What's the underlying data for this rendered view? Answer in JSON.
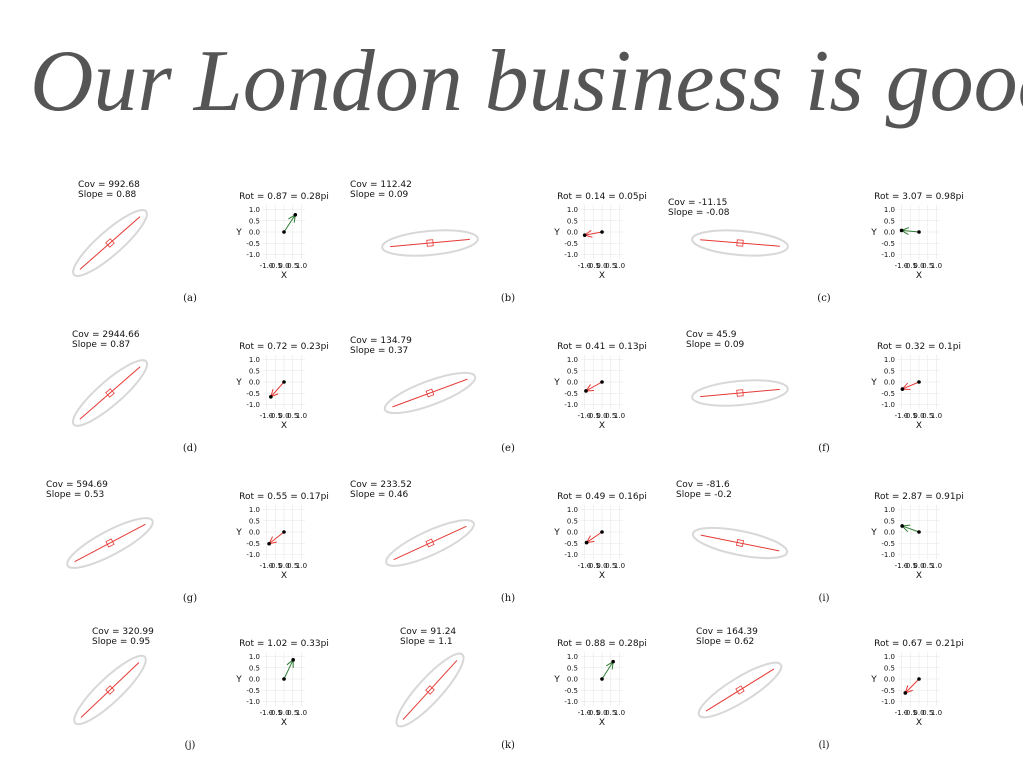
{
  "header": {
    "handwriting": "Our London business is good,"
  },
  "rot_axes": {
    "x_label": "X",
    "y_label": "Y",
    "xticks": [
      {
        "value": -1,
        "label": "-1.0"
      },
      {
        "value": -0.5,
        "label": "-0.5"
      },
      {
        "value": 0,
        "label": "0.0"
      },
      {
        "value": 0.5,
        "label": "0.5"
      },
      {
        "value": 1,
        "label": "1.0"
      }
    ],
    "yticks": [
      {
        "value": 1,
        "label": "1.0"
      },
      {
        "value": 0.5,
        "label": "0.5"
      },
      {
        "value": 0,
        "label": "0.0"
      },
      {
        "value": -0.5,
        "label": "-0.5"
      },
      {
        "value": -1,
        "label": "-1.0"
      }
    ],
    "lim": [
      -1.2,
      1.2
    ]
  },
  "panels": [
    {
      "label": "(a)",
      "cov_label": "Cov = 992.68",
      "slope_label": "Slope = 0.88",
      "slope": 0.88,
      "rot_label": "Rot = 0.87 = 0.28pi",
      "rot": 0.87,
      "arrow_color": "green"
    },
    {
      "label": "(b)",
      "cov_label": "Cov = 112.42",
      "slope_label": "Slope = 0.09",
      "slope": 0.09,
      "rot_label": "Rot = 0.14 = 0.05pi",
      "rot": 0.14,
      "arrow_color": "red"
    },
    {
      "label": "(c)",
      "cov_label": "Cov = -11.15",
      "slope_label": "Slope = -0.08",
      "slope": -0.08,
      "rot_label": "Rot = 3.07 = 0.98pi",
      "rot": 3.07,
      "arrow_color": "green"
    },
    {
      "label": "(d)",
      "cov_label": "Cov = 2944.66",
      "slope_label": "Slope = 0.87",
      "slope": 0.87,
      "rot_label": "Rot = 0.72 = 0.23pi",
      "rot": 0.72,
      "arrow_color": "red"
    },
    {
      "label": "(e)",
      "cov_label": "Cov = 134.79",
      "slope_label": "Slope = 0.37",
      "slope": 0.37,
      "rot_label": "Rot = 0.41 = 0.13pi",
      "rot": 0.41,
      "arrow_color": "red"
    },
    {
      "label": "(f)",
      "cov_label": "Cov = 45.9",
      "slope_label": "Slope = 0.09",
      "slope": 0.09,
      "rot_label": "Rot = 0.32 = 0.1pi",
      "rot": 0.32,
      "arrow_color": "red"
    },
    {
      "label": "(g)",
      "cov_label": "Cov = 594.69",
      "slope_label": "Slope = 0.53",
      "slope": 0.53,
      "rot_label": "Rot = 0.55 = 0.17pi",
      "rot": 0.55,
      "arrow_color": "red"
    },
    {
      "label": "(h)",
      "cov_label": "Cov = 233.52",
      "slope_label": "Slope = 0.46",
      "slope": 0.46,
      "rot_label": "Rot = 0.49 = 0.16pi",
      "rot": 0.49,
      "arrow_color": "red"
    },
    {
      "label": "(i)",
      "cov_label": "Cov = -81.6",
      "slope_label": "Slope = -0.2",
      "slope": -0.2,
      "rot_label": "Rot = 2.87 = 0.91pi",
      "rot": 2.87,
      "arrow_color": "green"
    },
    {
      "label": "(j)",
      "cov_label": "Cov = 320.99",
      "slope_label": "Slope = 0.95",
      "slope": 0.95,
      "rot_label": "Rot = 1.02 = 0.33pi",
      "rot": 1.02,
      "arrow_color": "green"
    },
    {
      "label": "(k)",
      "cov_label": "Cov = 91.24",
      "slope_label": "Slope = 1.1",
      "slope": 1.1,
      "rot_label": "Rot = 0.88 = 0.28pi",
      "rot": 0.88,
      "arrow_color": "green"
    },
    {
      "label": "(l)",
      "cov_label": "Cov = 164.39",
      "slope_label": "Slope = 0.62",
      "slope": 0.62,
      "rot_label": "Rot = 0.67 = 0.21pi",
      "rot": 0.67,
      "arrow_color": "red"
    }
  ]
}
